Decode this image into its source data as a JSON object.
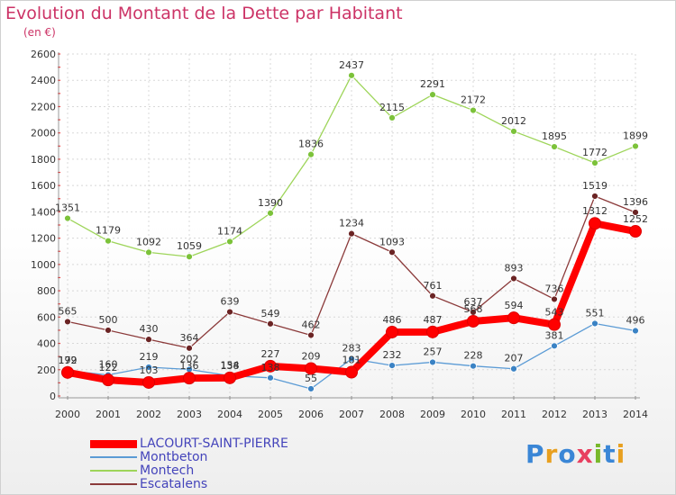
{
  "title": "Evolution du Montant de la Dette par Habitant",
  "unit": "(en €)",
  "logo": {
    "text": "Proxiti",
    "letter_colors": [
      "#3a86d6",
      "#e8a020",
      "#3a86d6",
      "#e84060",
      "#78b82a",
      "#3a86d6",
      "#e8a020"
    ]
  },
  "chart_data": {
    "type": "line",
    "title": "Evolution du Montant de la Dette par Habitant",
    "ylabel": "(en €)",
    "x": [
      "2000",
      "2001",
      "2002",
      "2003",
      "2004",
      "2005",
      "2006",
      "2007",
      "2008",
      "2009",
      "2010",
      "2011",
      "2012",
      "2013",
      "2014"
    ],
    "yticks": [
      0,
      200,
      400,
      600,
      800,
      1000,
      1200,
      1400,
      1600,
      1800,
      2000,
      2200,
      2400,
      2600
    ],
    "ylim": [
      0,
      2600
    ],
    "grid": true,
    "legend_position": "bottom-left",
    "series": [
      {
        "name": "Montbeton",
        "color": "#5b9bd5",
        "marker": "#3a82c4",
        "width": 1.3,
        "big": false,
        "values": [
          192,
          160,
          219,
          202,
          154,
          138,
          55,
          283,
          232,
          257,
          228,
          207,
          381,
          551,
          496
        ]
      },
      {
        "name": "Montech",
        "color": "#9ed55a",
        "marker": "#7cc23a",
        "width": 1.3,
        "big": false,
        "values": [
          1351,
          1179,
          1092,
          1059,
          1174,
          1390,
          1836,
          2437,
          2115,
          2291,
          2172,
          2012,
          1895,
          1772,
          1899
        ]
      },
      {
        "name": "Escatalens",
        "color": "#8b3a3a",
        "marker": "#6b2424",
        "width": 1.3,
        "big": false,
        "values": [
          565,
          500,
          430,
          364,
          639,
          549,
          462,
          1234,
          1093,
          761,
          637,
          893,
          736,
          1519,
          1396
        ]
      },
      {
        "name": "LACOURT-SAINT-PIERRE",
        "color": "#ff0000",
        "marker": "#ff0000",
        "width": 8,
        "big": true,
        "values": [
          179,
          122,
          103,
          136,
          138,
          227,
          209,
          181,
          486,
          487,
          568,
          594,
          543,
          1312,
          1252
        ]
      }
    ],
    "legend_order": [
      "LACOURT-SAINT-PIERRE",
      "Montbeton",
      "Montech",
      "Escatalens"
    ]
  }
}
